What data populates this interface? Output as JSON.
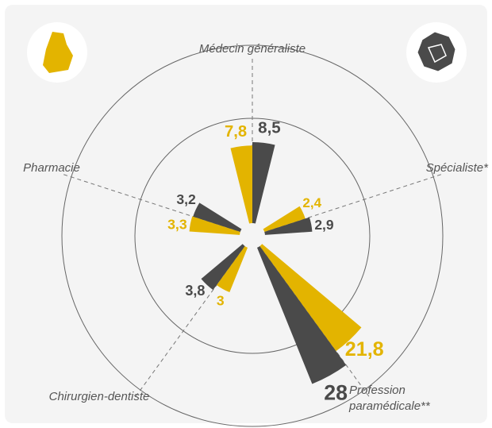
{
  "chart_data": {
    "type": "polar_bar",
    "categories": [
      "Médecin généraliste",
      "Spécialiste*",
      "Profession paramédicale**",
      "Chirurgien-dentiste",
      "Pharmacie"
    ],
    "series": [
      {
        "color": "#e3b400",
        "values": [
          7.8,
          2.4,
          21.8,
          3,
          3.3
        ],
        "value_labels": [
          "7,8",
          "2,4",
          "21,8",
          "3",
          "3,3"
        ]
      },
      {
        "color": "#4a4a4a",
        "values": [
          8.5,
          2.9,
          28,
          3.8,
          3.2
        ],
        "value_labels": [
          "8,5",
          "2,9",
          "28",
          "3,8",
          "3,2"
        ]
      }
    ]
  }
}
